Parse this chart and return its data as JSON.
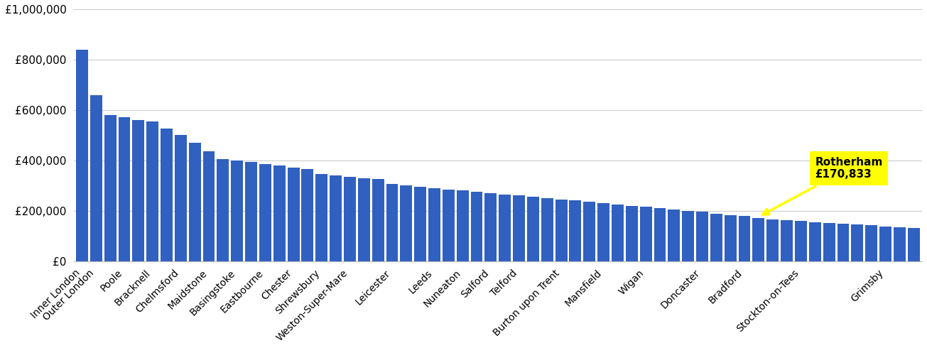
{
  "all_values": [
    840000,
    660000,
    580000,
    570000,
    560000,
    555000,
    525000,
    500000,
    470000,
    435000,
    405000,
    400000,
    395000,
    385000,
    380000,
    370000,
    365000,
    345000,
    340000,
    335000,
    330000,
    325000,
    305000,
    300000,
    295000,
    290000,
    285000,
    280000,
    275000,
    270000,
    265000,
    260000,
    255000,
    250000,
    245000,
    240000,
    235000,
    230000,
    225000,
    220000,
    215000,
    210000,
    205000,
    200000,
    195000,
    188000,
    182000,
    178000,
    170833,
    165000,
    162000,
    160000,
    155000,
    150000,
    148000,
    145000,
    142000,
    138000,
    135000,
    132000
  ],
  "tick_positions": [
    0,
    1,
    3,
    5,
    7,
    9,
    11,
    13,
    15,
    17,
    19,
    22,
    24,
    26,
    28,
    30,
    33,
    36,
    39,
    43,
    46,
    50,
    56
  ],
  "tick_labels": [
    "Inner London",
    "Outer London",
    "Poole",
    "Bracknell",
    "Chelmsford",
    "Maidstone",
    "Basingstoke",
    "Eastbourne",
    "Chester",
    "Shrewsbury",
    "Weston-Super-Mare",
    "Leicester",
    "Leeds",
    "Nuneaton",
    "Salford",
    "Telford",
    "Burton upon Trent",
    "Mansfield",
    "Wigan",
    "Doncaster",
    "Bradford",
    "Stockton-on-Tees",
    "Grimsby"
  ],
  "bar_color": "#3060c0",
  "highlight_index": 48,
  "highlight_label": "Rotherham\n£170,833",
  "background_color": "#ffffff",
  "ylim": [
    0,
    1000000
  ],
  "yticks": [
    0,
    200000,
    400000,
    600000,
    800000,
    1000000
  ],
  "ytick_labels": [
    "£0",
    "£200,000",
    "£400,000",
    "£600,000",
    "£800,000",
    "£1,000,000"
  ],
  "bar_width": 0.85,
  "tick_fontsize": 10,
  "ytick_fontsize": 11
}
